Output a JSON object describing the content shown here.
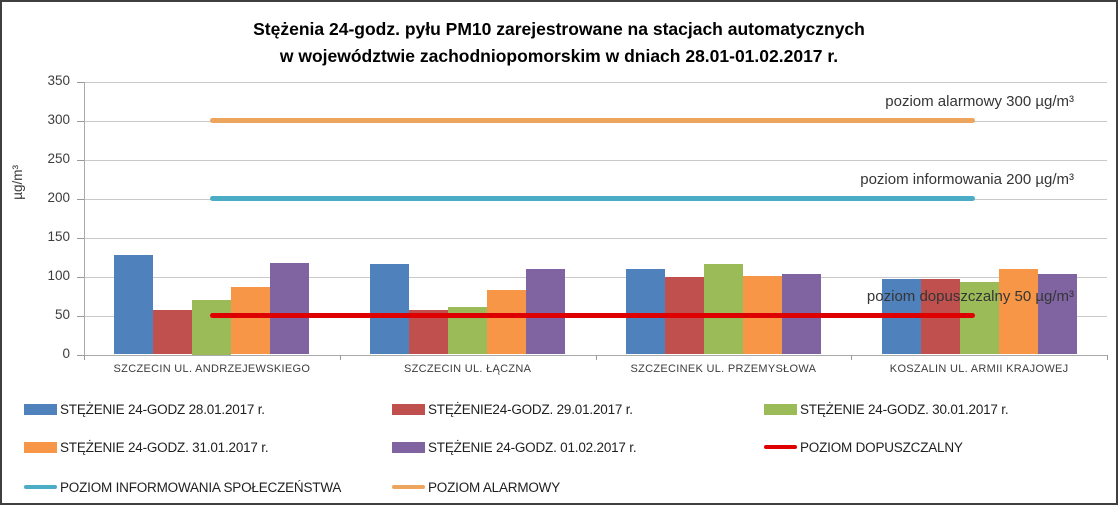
{
  "title": {
    "line1": "Stężenia 24-godz. pyłu PM10 zarejestrowane na stacjach automatycznych",
    "line2": "w województwie zachodniopomorskim w dniach 28.01-01.02.2017 r."
  },
  "chart_data": {
    "type": "bar",
    "title": "Stężenia 24-godz. pyłu PM10 zarejestrowane na stacjach automatycznych w województwie zachodniopomorskim w dniach 28.01-01.02.2017 r.",
    "ylabel": "µg/m³",
    "xlabel": "",
    "ylim": [
      0,
      350
    ],
    "ytick_step": 50,
    "grid": true,
    "legend_position": "bottom",
    "categories": [
      "SZCZECIN UL. ANDRZEJEWSKIEGO",
      "SZCZECIN UL. ŁĄCZNA",
      "SZCZECINEK UL. PRZEMYSŁOWA",
      "KOSZALIN UL. ARMII KRAJOWEJ"
    ],
    "series": [
      {
        "name": "STĘŻENIE 24-GODZ 28.01.2017 r.",
        "color": "#4F81BD",
        "values": [
          128,
          116,
          110,
          97
        ]
      },
      {
        "name": "STĘŻENIE24-GODZ. 29.01.2017 r.",
        "color": "#C0504D",
        "values": [
          57,
          57,
          99,
          97
        ]
      },
      {
        "name": "STĘŻENIE 24-GODZ. 30.01.2017 r.",
        "color": "#9BBB59",
        "values": [
          70,
          61,
          116,
          93
        ]
      },
      {
        "name": "STĘŻENIE 24-GODZ. 31.01.2017 r.",
        "color": "#F79646",
        "values": [
          87,
          83,
          101,
          110
        ]
      },
      {
        "name": "STĘŻENIE 24-GODZ. 01.02.2017 r.",
        "color": "#8064A2",
        "values": [
          118,
          110,
          104,
          103
        ]
      }
    ],
    "ref_lines": [
      {
        "label": "POZIOM DOPUSZCZALNY",
        "annotation": "poziom dopuszczalny 50 µg/m³",
        "value": 50,
        "color": "#DE0000"
      },
      {
        "label": "POZIOM INFORMOWANIA SPOŁECZEŃSTWA",
        "annotation": "poziom informowania 200 µg/m³",
        "value": 200,
        "color": "#4BACC6"
      },
      {
        "label": "POZIOM ALARMOWY",
        "annotation": "poziom alarmowy 300 µg/m³",
        "value": 300,
        "color": "#EDA55D"
      }
    ]
  }
}
